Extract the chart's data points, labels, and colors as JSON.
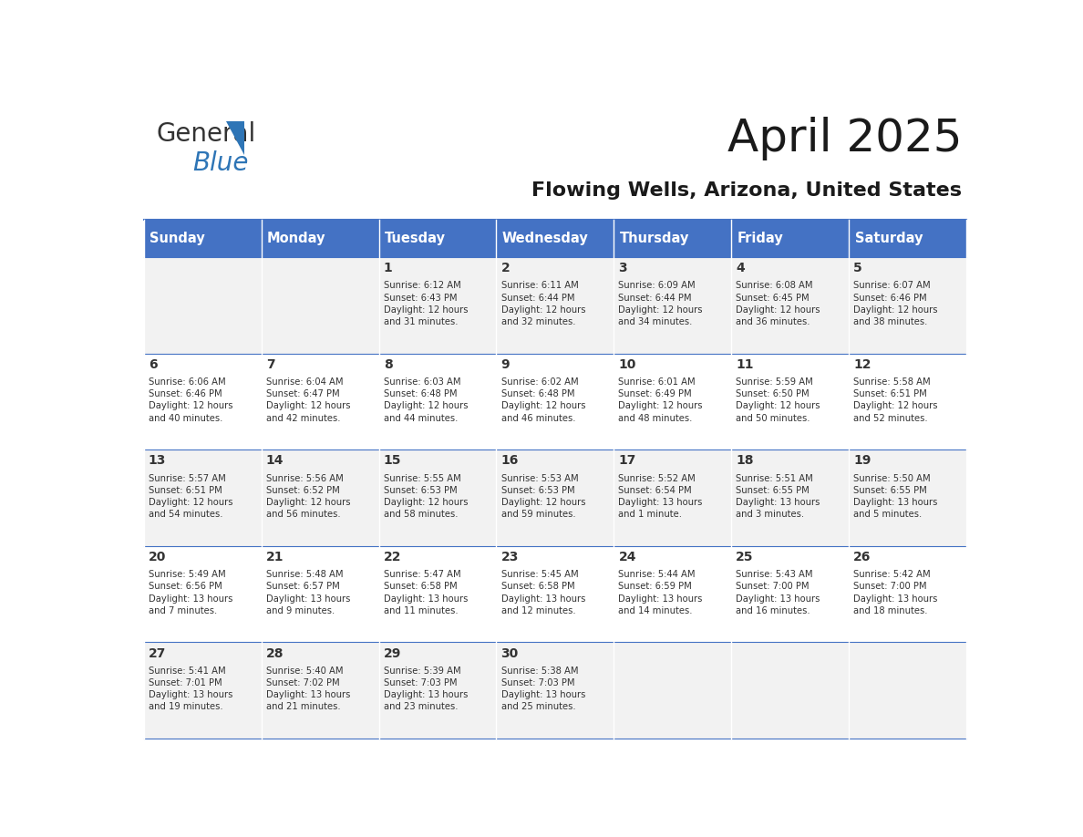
{
  "title": "April 2025",
  "subtitle": "Flowing Wells, Arizona, United States",
  "header_bg": "#4472C4",
  "header_text_color": "#FFFFFF",
  "cell_bg_odd": "#F2F2F2",
  "cell_bg_even": "#FFFFFF",
  "cell_border_color": "#4472C4",
  "day_headers": [
    "Sunday",
    "Monday",
    "Tuesday",
    "Wednesday",
    "Thursday",
    "Friday",
    "Saturday"
  ],
  "weeks": [
    [
      {
        "day": "",
        "info": ""
      },
      {
        "day": "",
        "info": ""
      },
      {
        "day": "1",
        "info": "Sunrise: 6:12 AM\nSunset: 6:43 PM\nDaylight: 12 hours\nand 31 minutes."
      },
      {
        "day": "2",
        "info": "Sunrise: 6:11 AM\nSunset: 6:44 PM\nDaylight: 12 hours\nand 32 minutes."
      },
      {
        "day": "3",
        "info": "Sunrise: 6:09 AM\nSunset: 6:44 PM\nDaylight: 12 hours\nand 34 minutes."
      },
      {
        "day": "4",
        "info": "Sunrise: 6:08 AM\nSunset: 6:45 PM\nDaylight: 12 hours\nand 36 minutes."
      },
      {
        "day": "5",
        "info": "Sunrise: 6:07 AM\nSunset: 6:46 PM\nDaylight: 12 hours\nand 38 minutes."
      }
    ],
    [
      {
        "day": "6",
        "info": "Sunrise: 6:06 AM\nSunset: 6:46 PM\nDaylight: 12 hours\nand 40 minutes."
      },
      {
        "day": "7",
        "info": "Sunrise: 6:04 AM\nSunset: 6:47 PM\nDaylight: 12 hours\nand 42 minutes."
      },
      {
        "day": "8",
        "info": "Sunrise: 6:03 AM\nSunset: 6:48 PM\nDaylight: 12 hours\nand 44 minutes."
      },
      {
        "day": "9",
        "info": "Sunrise: 6:02 AM\nSunset: 6:48 PM\nDaylight: 12 hours\nand 46 minutes."
      },
      {
        "day": "10",
        "info": "Sunrise: 6:01 AM\nSunset: 6:49 PM\nDaylight: 12 hours\nand 48 minutes."
      },
      {
        "day": "11",
        "info": "Sunrise: 5:59 AM\nSunset: 6:50 PM\nDaylight: 12 hours\nand 50 minutes."
      },
      {
        "day": "12",
        "info": "Sunrise: 5:58 AM\nSunset: 6:51 PM\nDaylight: 12 hours\nand 52 minutes."
      }
    ],
    [
      {
        "day": "13",
        "info": "Sunrise: 5:57 AM\nSunset: 6:51 PM\nDaylight: 12 hours\nand 54 minutes."
      },
      {
        "day": "14",
        "info": "Sunrise: 5:56 AM\nSunset: 6:52 PM\nDaylight: 12 hours\nand 56 minutes."
      },
      {
        "day": "15",
        "info": "Sunrise: 5:55 AM\nSunset: 6:53 PM\nDaylight: 12 hours\nand 58 minutes."
      },
      {
        "day": "16",
        "info": "Sunrise: 5:53 AM\nSunset: 6:53 PM\nDaylight: 12 hours\nand 59 minutes."
      },
      {
        "day": "17",
        "info": "Sunrise: 5:52 AM\nSunset: 6:54 PM\nDaylight: 13 hours\nand 1 minute."
      },
      {
        "day": "18",
        "info": "Sunrise: 5:51 AM\nSunset: 6:55 PM\nDaylight: 13 hours\nand 3 minutes."
      },
      {
        "day": "19",
        "info": "Sunrise: 5:50 AM\nSunset: 6:55 PM\nDaylight: 13 hours\nand 5 minutes."
      }
    ],
    [
      {
        "day": "20",
        "info": "Sunrise: 5:49 AM\nSunset: 6:56 PM\nDaylight: 13 hours\nand 7 minutes."
      },
      {
        "day": "21",
        "info": "Sunrise: 5:48 AM\nSunset: 6:57 PM\nDaylight: 13 hours\nand 9 minutes."
      },
      {
        "day": "22",
        "info": "Sunrise: 5:47 AM\nSunset: 6:58 PM\nDaylight: 13 hours\nand 11 minutes."
      },
      {
        "day": "23",
        "info": "Sunrise: 5:45 AM\nSunset: 6:58 PM\nDaylight: 13 hours\nand 12 minutes."
      },
      {
        "day": "24",
        "info": "Sunrise: 5:44 AM\nSunset: 6:59 PM\nDaylight: 13 hours\nand 14 minutes."
      },
      {
        "day": "25",
        "info": "Sunrise: 5:43 AM\nSunset: 7:00 PM\nDaylight: 13 hours\nand 16 minutes."
      },
      {
        "day": "26",
        "info": "Sunrise: 5:42 AM\nSunset: 7:00 PM\nDaylight: 13 hours\nand 18 minutes."
      }
    ],
    [
      {
        "day": "27",
        "info": "Sunrise: 5:41 AM\nSunset: 7:01 PM\nDaylight: 13 hours\nand 19 minutes."
      },
      {
        "day": "28",
        "info": "Sunrise: 5:40 AM\nSunset: 7:02 PM\nDaylight: 13 hours\nand 21 minutes."
      },
      {
        "day": "29",
        "info": "Sunrise: 5:39 AM\nSunset: 7:03 PM\nDaylight: 13 hours\nand 23 minutes."
      },
      {
        "day": "30",
        "info": "Sunrise: 5:38 AM\nSunset: 7:03 PM\nDaylight: 13 hours\nand 25 minutes."
      },
      {
        "day": "",
        "info": ""
      },
      {
        "day": "",
        "info": ""
      },
      {
        "day": "",
        "info": ""
      }
    ]
  ],
  "logo_text1": "General",
  "logo_text2": "Blue",
  "logo_color1": "#333333",
  "logo_color2": "#2E75B6",
  "logo_triangle_color": "#2E75B6"
}
